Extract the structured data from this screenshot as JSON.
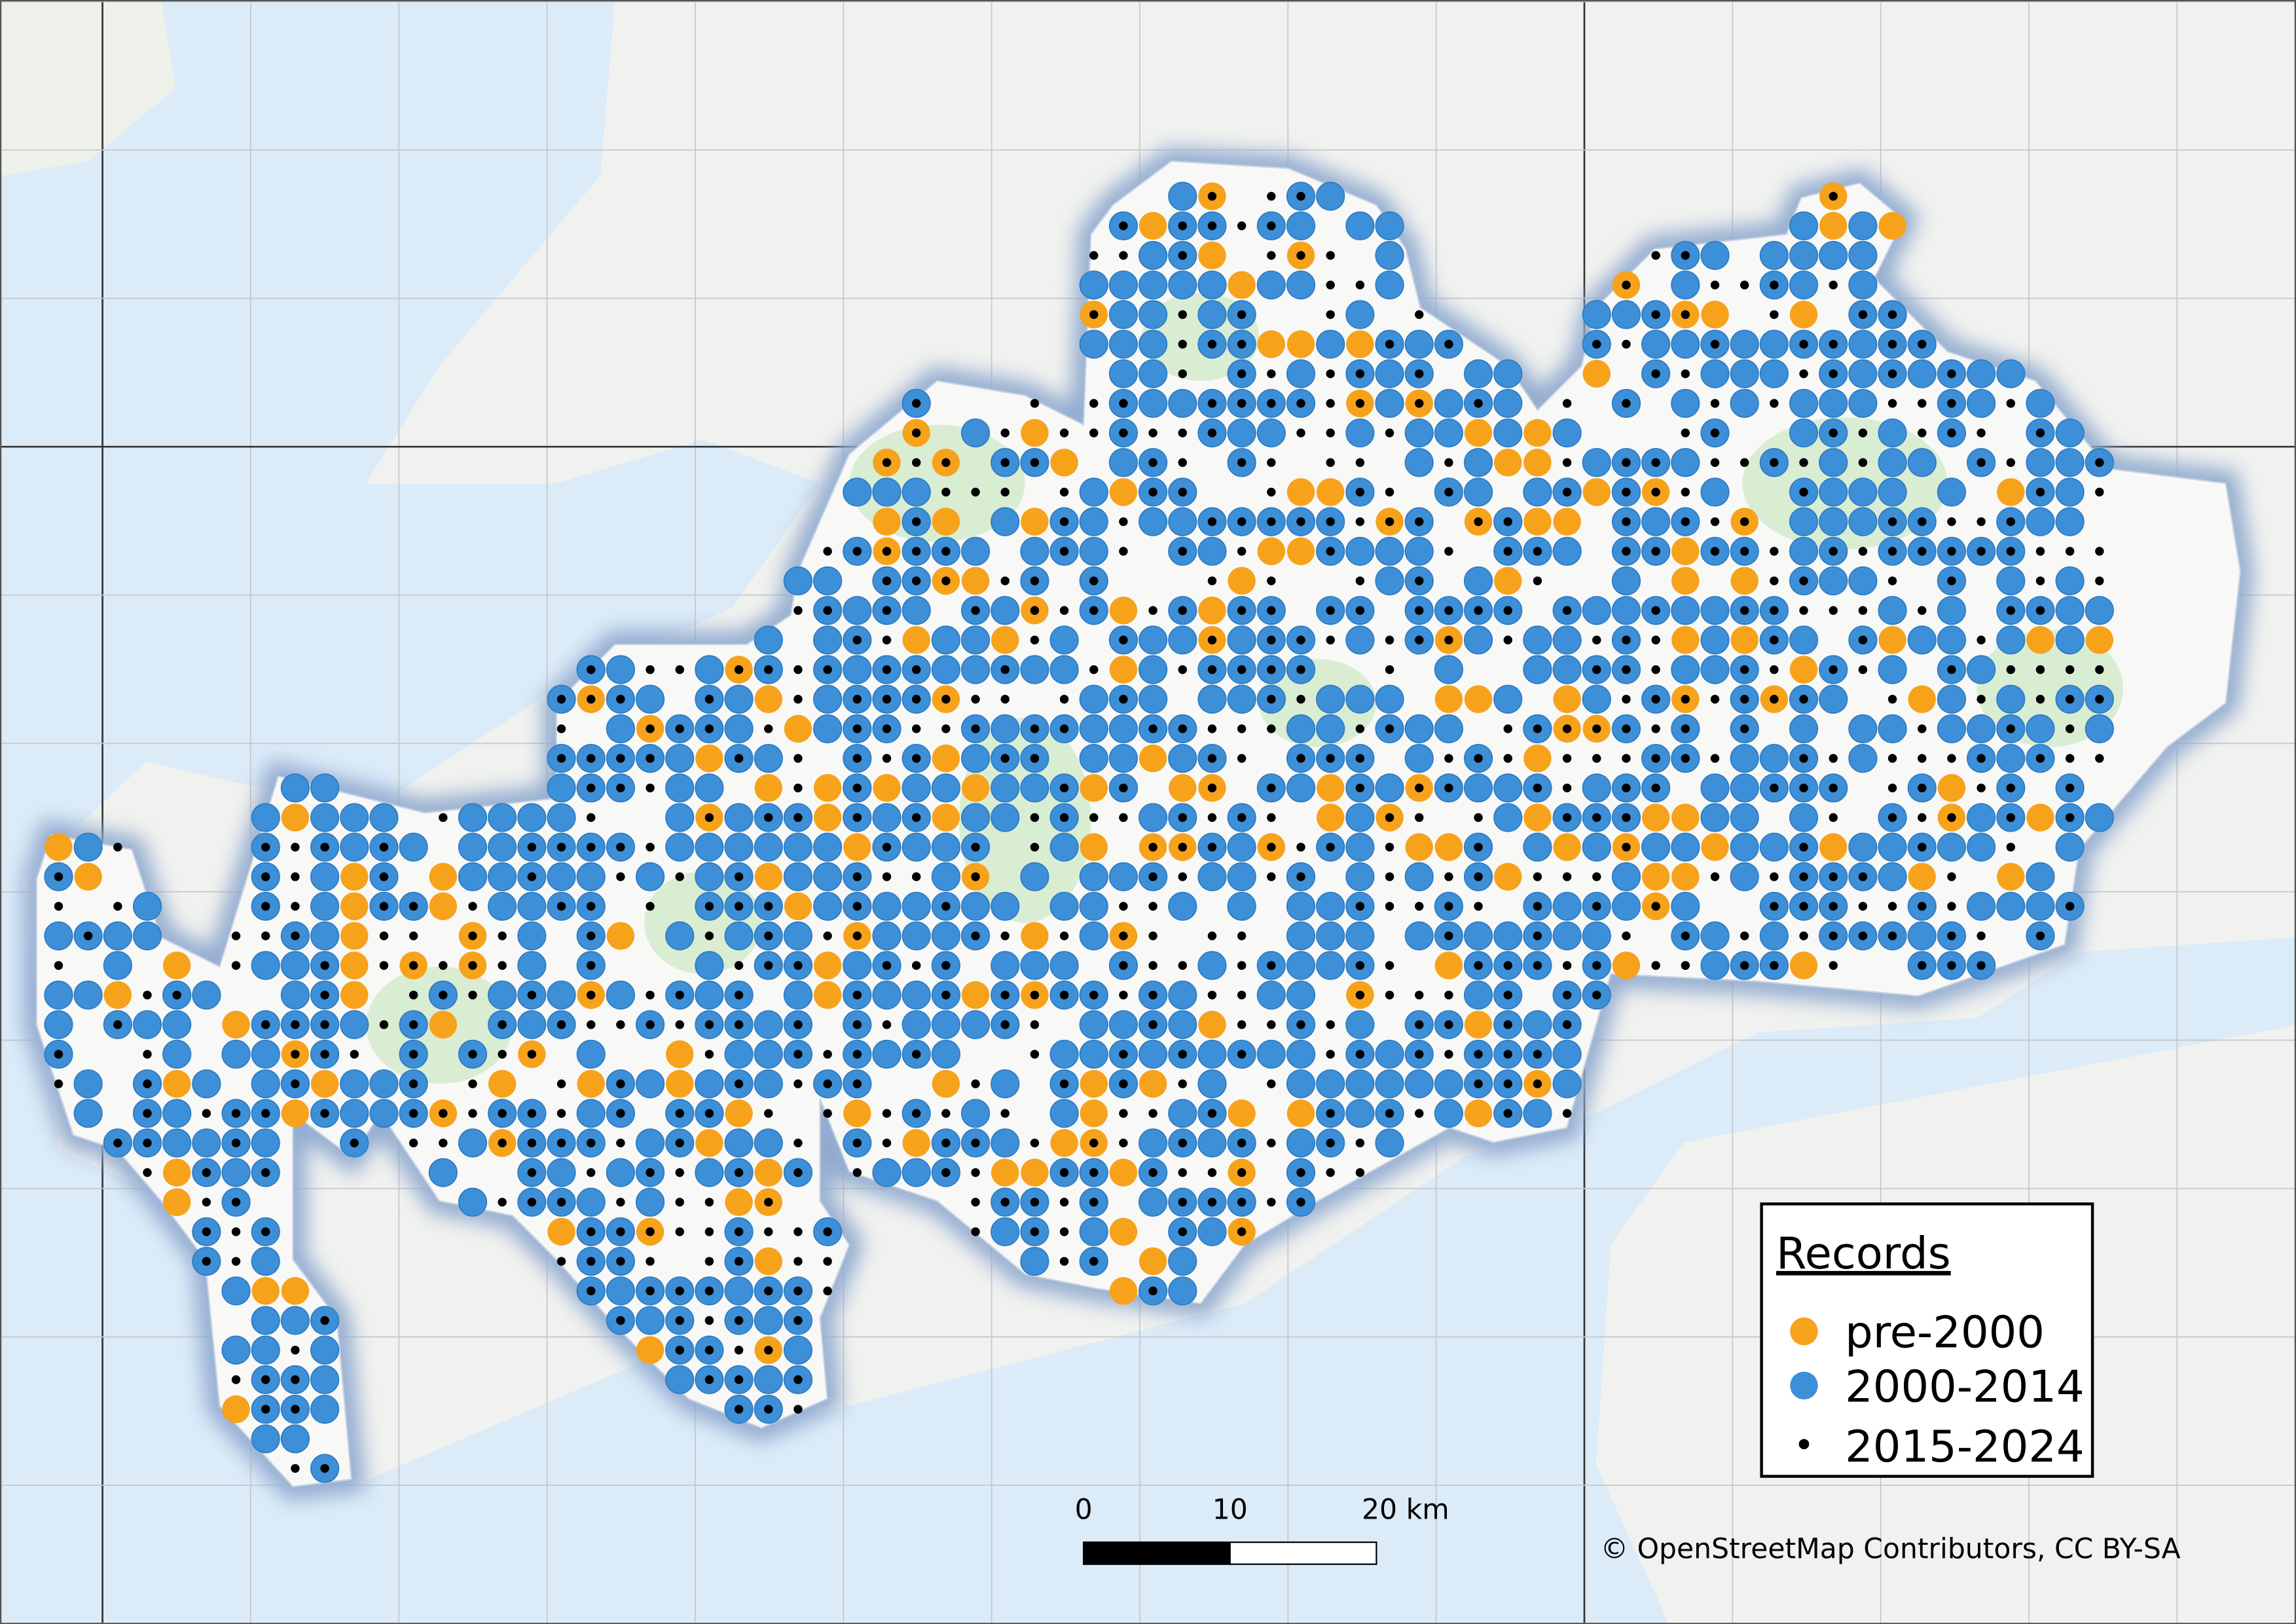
{
  "legend": {
    "title": "Records",
    "items": [
      "pre-2000",
      "2000-2014",
      "2015-2024"
    ]
  },
  "scale_bar": {
    "labels": [
      "0",
      "10",
      "20 km"
    ]
  },
  "attribution": "© OpenStreetMap Contributors, CC BY-SA"
}
